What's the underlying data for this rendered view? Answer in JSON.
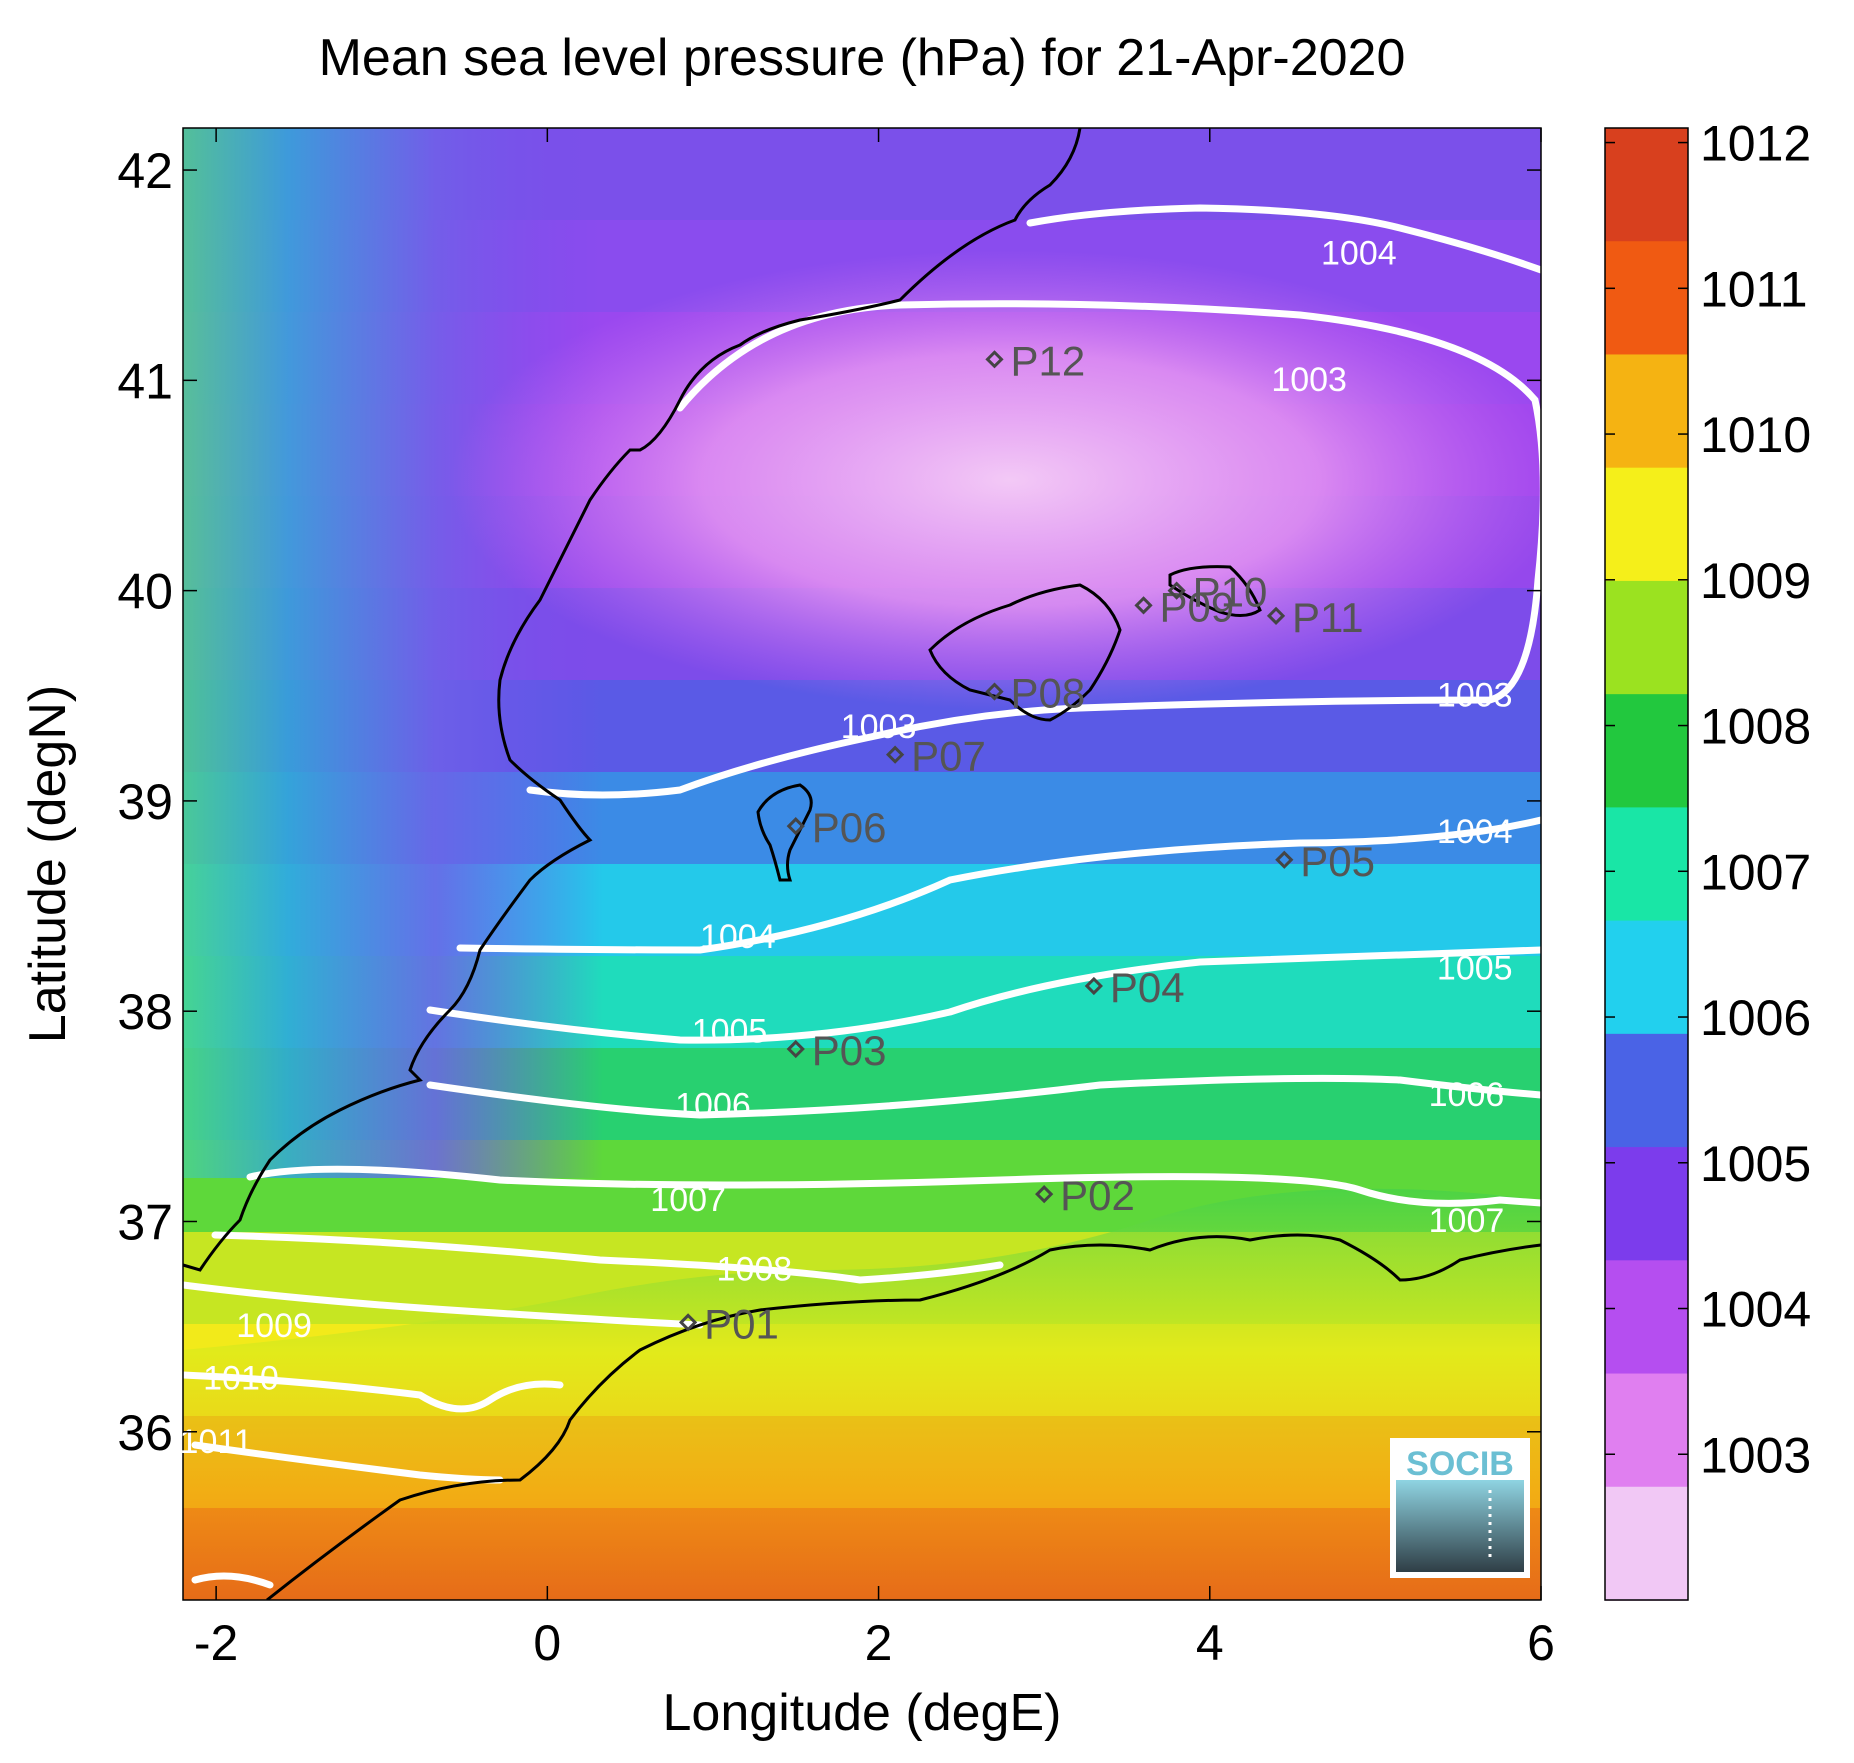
{
  "title": "Mean sea level pressure (hPa) for 21-Apr-2020",
  "chart_data": {
    "type": "heatmap",
    "title": "Mean sea level pressure (hPa) for 21-Apr-2020",
    "xlabel": "Longitude (degE)",
    "ylabel": "Latitude (degN)",
    "xlim": [
      -2.2,
      6.0
    ],
    "ylim": [
      35.2,
      42.2
    ],
    "x_ticks": [
      -2,
      0,
      2,
      4,
      6
    ],
    "y_ticks": [
      36,
      37,
      38,
      39,
      40,
      41,
      42
    ],
    "colorbar": {
      "ticks": [
        1003,
        1004,
        1005,
        1006,
        1007,
        1008,
        1009,
        1010,
        1011,
        1012
      ],
      "range": [
        1002.0,
        1012.1
      ],
      "colors": [
        "#f1c8f5",
        "#e07ff0",
        "#b54ef0",
        "#7c3cec",
        "#4a63e6",
        "#22d0ee",
        "#19e6a6",
        "#22c83e",
        "#9be220",
        "#f5ef1a",
        "#f5b312",
        "#f05a12",
        "#d8401e"
      ]
    },
    "contours": [
      {
        "level": "1003",
        "label_lon": 2.0,
        "label_lat": 39.3
      },
      {
        "level": "1003",
        "label_lon": 4.6,
        "label_lat": 40.95
      },
      {
        "level": "1003",
        "label_lon": 5.6,
        "label_lat": 39.45
      },
      {
        "level": "1004",
        "label_lon": 4.9,
        "label_lat": 41.55
      },
      {
        "level": "1004",
        "label_lon": 1.15,
        "label_lat": 38.3
      },
      {
        "level": "1004",
        "label_lon": 5.6,
        "label_lat": 38.8
      },
      {
        "level": "1005",
        "label_lon": 1.1,
        "label_lat": 37.85
      },
      {
        "level": "1005",
        "label_lon": 5.6,
        "label_lat": 38.15
      },
      {
        "level": "1006",
        "label_lon": 1.0,
        "label_lat": 37.5
      },
      {
        "level": "1006",
        "label_lon": 5.55,
        "label_lat": 37.55
      },
      {
        "level": "1007",
        "label_lon": 0.85,
        "label_lat": 37.05
      },
      {
        "level": "1007",
        "label_lon": 5.55,
        "label_lat": 36.95
      },
      {
        "level": "1008",
        "label_lon": 1.25,
        "label_lat": 36.72
      },
      {
        "level": "1009",
        "label_lon": -1.65,
        "label_lat": 36.45
      },
      {
        "level": "1010",
        "label_lon": -1.85,
        "label_lat": 36.2
      },
      {
        "level": "1011",
        "label_lon": -2.0,
        "label_lat": 35.9
      }
    ],
    "stations": [
      {
        "name": "P01",
        "lon": 0.85,
        "lat": 36.52
      },
      {
        "name": "P02",
        "lon": 3.0,
        "lat": 37.13
      },
      {
        "name": "P03",
        "lon": 1.5,
        "lat": 37.82
      },
      {
        "name": "P04",
        "lon": 3.3,
        "lat": 38.12
      },
      {
        "name": "P05",
        "lon": 4.45,
        "lat": 38.72
      },
      {
        "name": "P06",
        "lon": 1.5,
        "lat": 38.88
      },
      {
        "name": "P07",
        "lon": 2.1,
        "lat": 39.22
      },
      {
        "name": "P08",
        "lon": 2.7,
        "lat": 39.52
      },
      {
        "name": "P09",
        "lon": 3.6,
        "lat": 39.93
      },
      {
        "name": "P10",
        "lon": 3.8,
        "lat": 40.0
      },
      {
        "name": "P11",
        "lon": 4.4,
        "lat": 39.88
      },
      {
        "name": "P12",
        "lon": 2.7,
        "lat": 41.1
      }
    ]
  },
  "logo": {
    "text": "SOCIB"
  }
}
